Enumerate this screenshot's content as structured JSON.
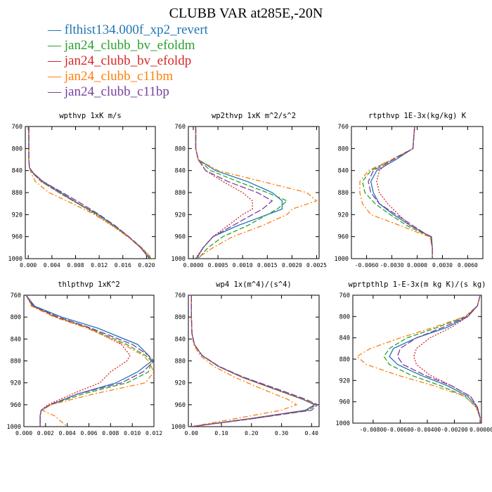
{
  "figure_title": "CLUBB VAR at285E,-20N",
  "legend": [
    {
      "label": "flthist134.000f_xp2_revert",
      "color": "#1f77b4"
    },
    {
      "label": "jan24_clubb_bv_efoldm",
      "color": "#2ca02c"
    },
    {
      "label": "jan24_clubb_bv_efoldp",
      "color": "#d62728"
    },
    {
      "label": "jan24_clubb_c11bm",
      "color": "#ff7f0e"
    },
    {
      "label": "jan24_clubb_c11bp",
      "color": "#7b3fa0"
    }
  ],
  "chart_data": [
    {
      "type": "line",
      "title": "wpthvp  1xK m/s",
      "xlim": [
        -0.0005,
        0.0215
      ],
      "ylim": [
        760,
        1000
      ],
      "xticks": [
        "0.000",
        "0.004",
        "0.008",
        "0.012",
        "0.016",
        "0.020"
      ],
      "xtick_values": [
        0,
        0.004,
        0.008,
        0.012,
        0.016,
        0.02
      ],
      "yticks": [
        "760",
        "800",
        "840",
        "880",
        "920",
        "960",
        "1000"
      ],
      "y": [
        760,
        800,
        820,
        835,
        845,
        860,
        880,
        900,
        920,
        940,
        960,
        980,
        1000
      ],
      "series": [
        {
          "name": "flthist134.000f_xp2_revert",
          "values": [
            0.0001,
            0.0001,
            0.0001,
            0.0002,
            0.0009,
            0.0025,
            0.0055,
            0.0085,
            0.0118,
            0.0145,
            0.017,
            0.019,
            0.0205
          ]
        },
        {
          "name": "jan24_clubb_bv_efoldm",
          "values": [
            0.0001,
            0.0001,
            0.0001,
            0.0002,
            0.0008,
            0.0022,
            0.0052,
            0.0084,
            0.0117,
            0.0145,
            0.017,
            0.0192,
            0.0208
          ]
        },
        {
          "name": "jan24_clubb_bv_efoldp",
          "values": [
            0.0001,
            0.0001,
            0.0001,
            0.0002,
            0.0008,
            0.0022,
            0.0052,
            0.0084,
            0.0114,
            0.0142,
            0.0168,
            0.019,
            0.0206
          ]
        },
        {
          "name": "jan24_clubb_c11bm",
          "values": [
            0.0001,
            0.0001,
            0.0001,
            0.0002,
            0.0005,
            0.0012,
            0.0035,
            0.0075,
            0.0112,
            0.0142,
            0.0168,
            0.0192,
            0.021
          ]
        },
        {
          "name": "jan24_clubb_c11bp",
          "values": [
            0.0001,
            0.0001,
            0.0001,
            0.0002,
            0.0009,
            0.0025,
            0.0058,
            0.009,
            0.012,
            0.0147,
            0.017,
            0.019,
            0.0205
          ]
        }
      ]
    },
    {
      "type": "line",
      "title": "wp2thvp  1xK m^2/s^2",
      "xlim": [
        -0.0001,
        0.00255
      ],
      "ylim": [
        760,
        1000
      ],
      "xticks": [
        "0.0000",
        "0.0005",
        "0.0010",
        "0.0015",
        "0.0020",
        "0.0025"
      ],
      "xtick_values": [
        0,
        0.0005,
        0.001,
        0.0015,
        0.002,
        0.0025
      ],
      "yticks": [
        "760",
        "800",
        "840",
        "880",
        "920",
        "960",
        "1000"
      ],
      "y": [
        760,
        800,
        820,
        840,
        860,
        880,
        895,
        910,
        920,
        940,
        960,
        980,
        995,
        1000
      ],
      "series": [
        {
          "name": "flthist134.000f_xp2_revert",
          "values": [
            5e-05,
            5e-05,
            0.0001,
            0.00045,
            0.0011,
            0.0016,
            0.0018,
            0.0018,
            0.0015,
            0.0009,
            0.0004,
            0.0002,
            0.0001,
            0.0001
          ]
        },
        {
          "name": "jan24_clubb_bv_efoldm",
          "values": [
            5e-05,
            5e-05,
            0.0001,
            0.00035,
            0.0009,
            0.0015,
            0.0019,
            0.0017,
            0.0015,
            0.0011,
            0.0006,
            0.0003,
            0.00015,
            0.0001
          ]
        },
        {
          "name": "jan24_clubb_bv_efoldp",
          "values": [
            5e-05,
            5e-05,
            0.0001,
            0.00025,
            0.0006,
            0.001,
            0.0012,
            0.0012,
            0.001,
            0.0007,
            0.0004,
            0.0002,
            8e-05,
            5e-05
          ]
        },
        {
          "name": "jan24_clubb_c11bm",
          "values": [
            5e-05,
            5e-05,
            0.0001,
            0.0005,
            0.0014,
            0.0023,
            0.0025,
            0.002,
            0.0019,
            0.0014,
            0.0008,
            0.0004,
            0.00015,
            0.0001
          ]
        },
        {
          "name": "jan24_clubb_c11bp",
          "values": [
            5e-05,
            5e-05,
            0.0001,
            0.00025,
            0.0007,
            0.0013,
            0.0016,
            0.0014,
            0.0012,
            0.0008,
            0.0004,
            0.0002,
            0.0001,
            5e-05
          ]
        }
      ]
    },
    {
      "type": "line",
      "title": "rtpthvp  1E-3x(kg/kg) K",
      "xlim": [
        -0.0078,
        0.0078
      ],
      "ylim": [
        760,
        1000
      ],
      "xticks": [
        "-0.0060",
        "-0.0030",
        "0.0000",
        "0.0030",
        "0.0060"
      ],
      "xtick_values": [
        -0.006,
        -0.003,
        0,
        0.003,
        0.006
      ],
      "yticks": [
        "760",
        "800",
        "840",
        "880",
        "920",
        "960",
        "1000"
      ],
      "y": [
        760,
        800,
        820,
        840,
        860,
        880,
        900,
        920,
        940,
        955,
        960,
        980,
        1000
      ],
      "series": [
        {
          "name": "flthist134.000f_xp2_revert",
          "values": [
            -0.0003,
            -0.0005,
            -0.0025,
            -0.0048,
            -0.0055,
            -0.0052,
            -0.0045,
            -0.0028,
            -0.0008,
            0.001,
            0.0017,
            0.0018,
            0.0018
          ]
        },
        {
          "name": "jan24_clubb_bv_efoldm",
          "values": [
            -0.0003,
            -0.0005,
            -0.003,
            -0.0055,
            -0.0065,
            -0.0062,
            -0.005,
            -0.0032,
            -0.0012,
            0.0008,
            0.0016,
            0.0018,
            0.0018
          ]
        },
        {
          "name": "jan24_clubb_bv_efoldp",
          "values": [
            -0.0003,
            -0.0005,
            -0.003,
            -0.0045,
            -0.0048,
            -0.0045,
            -0.0035,
            -0.0022,
            -0.0008,
            0.001,
            0.0017,
            0.0018,
            0.0018
          ]
        },
        {
          "name": "jan24_clubb_c11bm",
          "values": [
            -0.0003,
            -0.0005,
            -0.003,
            -0.0058,
            -0.0068,
            -0.0068,
            -0.0065,
            -0.0055,
            -0.002,
            0.0005,
            0.0015,
            0.0018,
            0.0018
          ]
        },
        {
          "name": "jan24_clubb_c11bp",
          "values": [
            -0.0003,
            -0.0005,
            -0.0028,
            -0.0052,
            -0.0058,
            -0.0055,
            -0.0045,
            -0.0025,
            -0.0005,
            0.001,
            0.0016,
            0.0018,
            0.0018
          ]
        }
      ]
    },
    {
      "type": "line",
      "title": "thlpthvp  1xK^2",
      "xlim": [
        0.0,
        0.012
      ],
      "ylim": [
        760,
        1000
      ],
      "xticks": [
        "0.000",
        "0.002",
        "0.004",
        "0.006",
        "0.008",
        "0.010",
        "0.012"
      ],
      "xtick_values": [
        0,
        0.002,
        0.004,
        0.006,
        0.008,
        0.01,
        0.012
      ],
      "yticks": [
        "760",
        "800",
        "840",
        "880",
        "920",
        "960",
        "1000"
      ],
      "y": [
        760,
        780,
        800,
        820,
        850,
        870,
        880,
        900,
        920,
        940,
        960,
        970,
        980,
        1000
      ],
      "series": [
        {
          "name": "flthist134.000f_xp2_revert",
          "values": [
            0.0002,
            0.001,
            0.0035,
            0.0068,
            0.0105,
            0.0115,
            0.0118,
            0.0105,
            0.0085,
            0.005,
            0.0025,
            0.0016,
            0.0015,
            0.0015
          ]
        },
        {
          "name": "jan24_clubb_bv_efoldm",
          "values": [
            0.0002,
            0.0008,
            0.003,
            0.006,
            0.0095,
            0.0112,
            0.0118,
            0.0115,
            0.0095,
            0.0055,
            0.0025,
            0.0016,
            0.0015,
            0.0015
          ]
        },
        {
          "name": "jan24_clubb_bv_efoldp",
          "values": [
            0.0002,
            0.0008,
            0.003,
            0.006,
            0.009,
            0.0098,
            0.0095,
            0.008,
            0.007,
            0.0045,
            0.0022,
            0.0016,
            0.0015,
            0.0015
          ]
        },
        {
          "name": "jan24_clubb_c11bm",
          "values": [
            0.0002,
            0.0007,
            0.0028,
            0.0058,
            0.0092,
            0.011,
            0.0115,
            0.012,
            0.0112,
            0.0065,
            0.0025,
            0.0017,
            0.0028,
            0.004
          ]
        },
        {
          "name": "jan24_clubb_c11bp",
          "values": [
            0.0002,
            0.0009,
            0.0032,
            0.0062,
            0.01,
            0.0115,
            0.012,
            0.011,
            0.009,
            0.005,
            0.0024,
            0.0016,
            0.0015,
            0.0015
          ]
        }
      ]
    },
    {
      "type": "line",
      "title": "wp4  1x(m^4)/(s^4)",
      "xlim": [
        -0.01,
        0.425
      ],
      "ylim": [
        760,
        1000
      ],
      "xticks": [
        "0.00",
        "0.10",
        "0.20",
        "0.30",
        "0.40"
      ],
      "xtick_values": [
        0,
        0.1,
        0.2,
        0.3,
        0.4
      ],
      "yticks": [
        "760",
        "800",
        "840",
        "880",
        "920",
        "960",
        "1000"
      ],
      "y": [
        760,
        800,
        830,
        850,
        870,
        890,
        910,
        930,
        950,
        960,
        970,
        985,
        1000
      ],
      "series": [
        {
          "name": "flthist134.000f_xp2_revert",
          "values": [
            0.0,
            0.0,
            0.002,
            0.01,
            0.035,
            0.09,
            0.17,
            0.27,
            0.37,
            0.41,
            0.38,
            0.2,
            0.0
          ]
        },
        {
          "name": "jan24_clubb_bv_efoldm",
          "values": [
            0.0,
            0.0,
            0.002,
            0.01,
            0.035,
            0.09,
            0.17,
            0.27,
            0.37,
            0.415,
            0.39,
            0.21,
            0.0
          ]
        },
        {
          "name": "jan24_clubb_bv_efoldp",
          "values": [
            0.0,
            0.0,
            0.002,
            0.01,
            0.035,
            0.09,
            0.17,
            0.27,
            0.37,
            0.41,
            0.385,
            0.2,
            0.0
          ]
        },
        {
          "name": "jan24_clubb_c11bm",
          "values": [
            0.0,
            0.0,
            0.002,
            0.008,
            0.028,
            0.075,
            0.145,
            0.23,
            0.32,
            0.35,
            0.3,
            0.15,
            0.0
          ]
        },
        {
          "name": "jan24_clubb_c11bp",
          "values": [
            0.0,
            0.0,
            0.002,
            0.01,
            0.036,
            0.092,
            0.175,
            0.28,
            0.38,
            0.42,
            0.4,
            0.21,
            0.0
          ]
        }
      ]
    },
    {
      "type": "line",
      "title": "wprtpthlp  1-E-3x(m kg K)/(s kg)",
      "xlim": [
        -0.0095,
        0.0
      ],
      "ylim": [
        760,
        1000
      ],
      "xticks": [
        "-0.00800",
        "-0.00600",
        "-0.00400",
        "-0.00200",
        "0.00000"
      ],
      "xtick_values": [
        -0.008,
        -0.006,
        -0.004,
        -0.002,
        0
      ],
      "yticks": [
        "760",
        "800",
        "840",
        "880",
        "920",
        "960",
        "1000"
      ],
      "y": [
        760,
        780,
        800,
        820,
        840,
        860,
        875,
        890,
        910,
        930,
        950,
        970,
        990,
        1000
      ],
      "series": [
        {
          "name": "flthist134.000f_xp2_revert",
          "values": [
            -0.0001,
            -0.0003,
            -0.001,
            -0.0025,
            -0.0048,
            -0.0065,
            -0.0068,
            -0.0062,
            -0.0045,
            -0.0025,
            -0.001,
            -0.0003,
            -0.0001,
            -0.0001
          ]
        },
        {
          "name": "jan24_clubb_bv_efoldm",
          "values": [
            -0.0001,
            -0.0003,
            -0.0012,
            -0.0032,
            -0.0055,
            -0.0068,
            -0.0072,
            -0.0068,
            -0.0052,
            -0.003,
            -0.0012,
            -0.0004,
            -0.0001,
            -0.0001
          ]
        },
        {
          "name": "jan24_clubb_bv_efoldp",
          "values": [
            -0.0001,
            -0.0003,
            -0.001,
            -0.0022,
            -0.0038,
            -0.0048,
            -0.005,
            -0.0048,
            -0.0038,
            -0.0022,
            -0.0008,
            -0.0003,
            -0.0001,
            -0.0001
          ]
        },
        {
          "name": "jan24_clubb_c11bm",
          "values": [
            -0.0001,
            -0.0003,
            -0.0012,
            -0.0035,
            -0.006,
            -0.0082,
            -0.0092,
            -0.0085,
            -0.0062,
            -0.0035,
            -0.0012,
            -0.0004,
            -0.0001,
            -0.0001
          ]
        },
        {
          "name": "jan24_clubb_c11bp",
          "values": [
            -0.0001,
            -0.0003,
            -0.0011,
            -0.0028,
            -0.0048,
            -0.006,
            -0.0062,
            -0.0058,
            -0.0042,
            -0.0022,
            -0.0008,
            -0.0003,
            -0.0001,
            -0.0001
          ]
        }
      ]
    }
  ]
}
